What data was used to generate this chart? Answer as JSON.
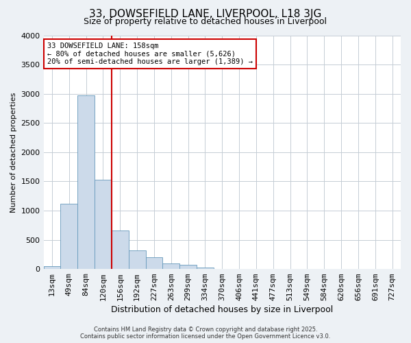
{
  "title": "33, DOWSEFIELD LANE, LIVERPOOL, L18 3JG",
  "subtitle": "Size of property relative to detached houses in Liverpool",
  "xlabel": "Distribution of detached houses by size in Liverpool",
  "ylabel": "Number of detached properties",
  "bin_labels": [
    "13sqm",
    "49sqm",
    "84sqm",
    "120sqm",
    "156sqm",
    "192sqm",
    "227sqm",
    "263sqm",
    "299sqm",
    "334sqm",
    "370sqm",
    "406sqm",
    "441sqm",
    "477sqm",
    "513sqm",
    "549sqm",
    "584sqm",
    "620sqm",
    "656sqm",
    "691sqm",
    "727sqm"
  ],
  "bar_values": [
    55,
    1120,
    2970,
    1530,
    660,
    320,
    200,
    100,
    70,
    20,
    5,
    2,
    0,
    0,
    0,
    0,
    0,
    0,
    0,
    0,
    0
  ],
  "bar_color": "#ccdaea",
  "bar_edge_color": "#6699bb",
  "vline_color": "#cc0000",
  "vline_pos": 3.5,
  "annotation_text": "33 DOWSEFIELD LANE: 158sqm\n← 80% of detached houses are smaller (5,626)\n20% of semi-detached houses are larger (1,389) →",
  "annotation_box_facecolor": "#ffffff",
  "annotation_box_edgecolor": "#cc0000",
  "ylim": [
    0,
    4000
  ],
  "yticks": [
    0,
    500,
    1000,
    1500,
    2000,
    2500,
    3000,
    3500,
    4000
  ],
  "footer1": "Contains HM Land Registry data © Crown copyright and database right 2025.",
  "footer2": "Contains public sector information licensed under the Open Government Licence v3.0.",
  "bg_color": "#edf1f5",
  "plot_bg_color": "#ffffff",
  "grid_color": "#c5cdd5",
  "title_fontsize": 11,
  "subtitle_fontsize": 9,
  "xlabel_fontsize": 9,
  "ylabel_fontsize": 8,
  "tick_fontsize": 8,
  "annotation_fontsize": 7.5,
  "footer_fontsize": 6
}
